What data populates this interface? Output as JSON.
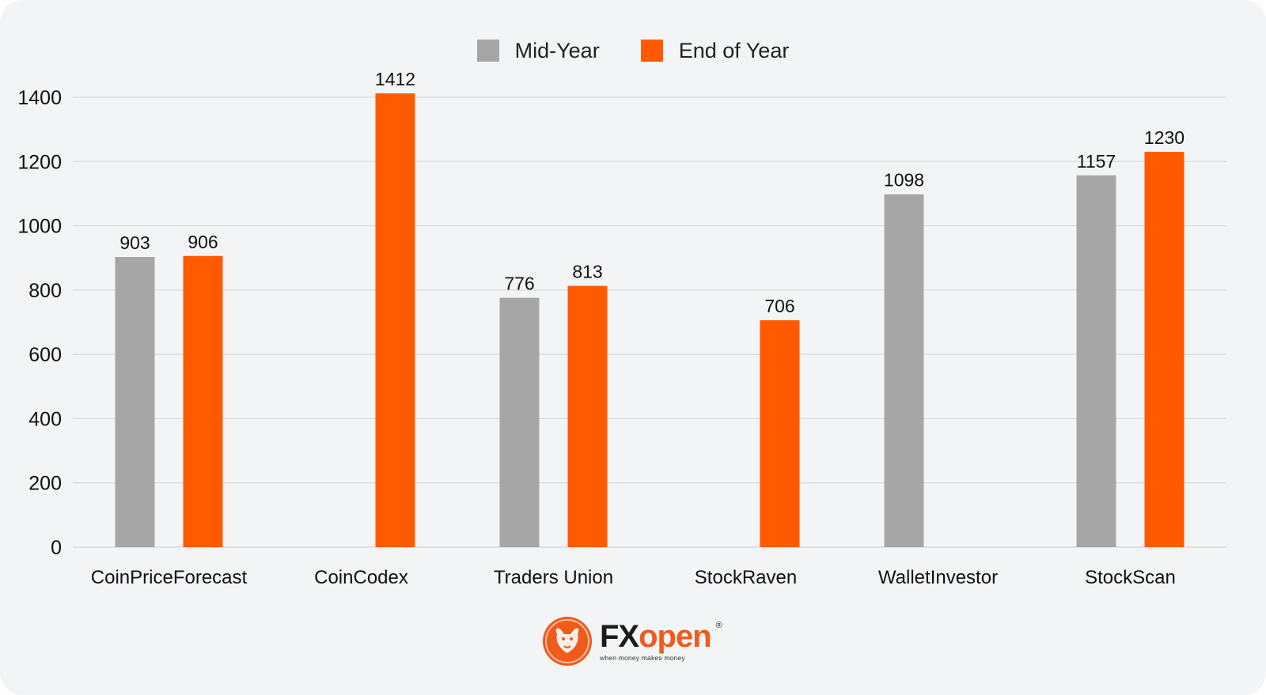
{
  "colors": {
    "mid_year": "#a6a6a6",
    "end_of_year": "#ff5a00",
    "gridline": "#d9d9d9",
    "background": "#f3f4f6",
    "brand_orange": "#f05a1a"
  },
  "legend": {
    "mid_year_label": "Mid-Year",
    "end_of_year_label": "End of Year"
  },
  "chart_data": {
    "type": "bar",
    "categories": [
      "CoinPriceForecast",
      "CoinCodex",
      "Traders Union",
      "StockRaven",
      "WalletInvestor",
      "StockScan"
    ],
    "series": [
      {
        "name": "Mid-Year",
        "values": [
          903,
          null,
          776,
          null,
          1098,
          1157
        ]
      },
      {
        "name": "End of Year",
        "values": [
          906,
          1412,
          813,
          706,
          null,
          1230
        ]
      }
    ],
    "yticks": [
      0,
      200,
      400,
      600,
      800,
      1000,
      1200,
      1400
    ],
    "ylim": [
      0,
      1400
    ],
    "grid": true,
    "legend_position": "top-center"
  },
  "logo": {
    "brand_fx": "FX",
    "brand_open": "open",
    "registered": "®",
    "tagline": "when money makes money",
    "emblem_icon": "bull-emblem-icon"
  }
}
